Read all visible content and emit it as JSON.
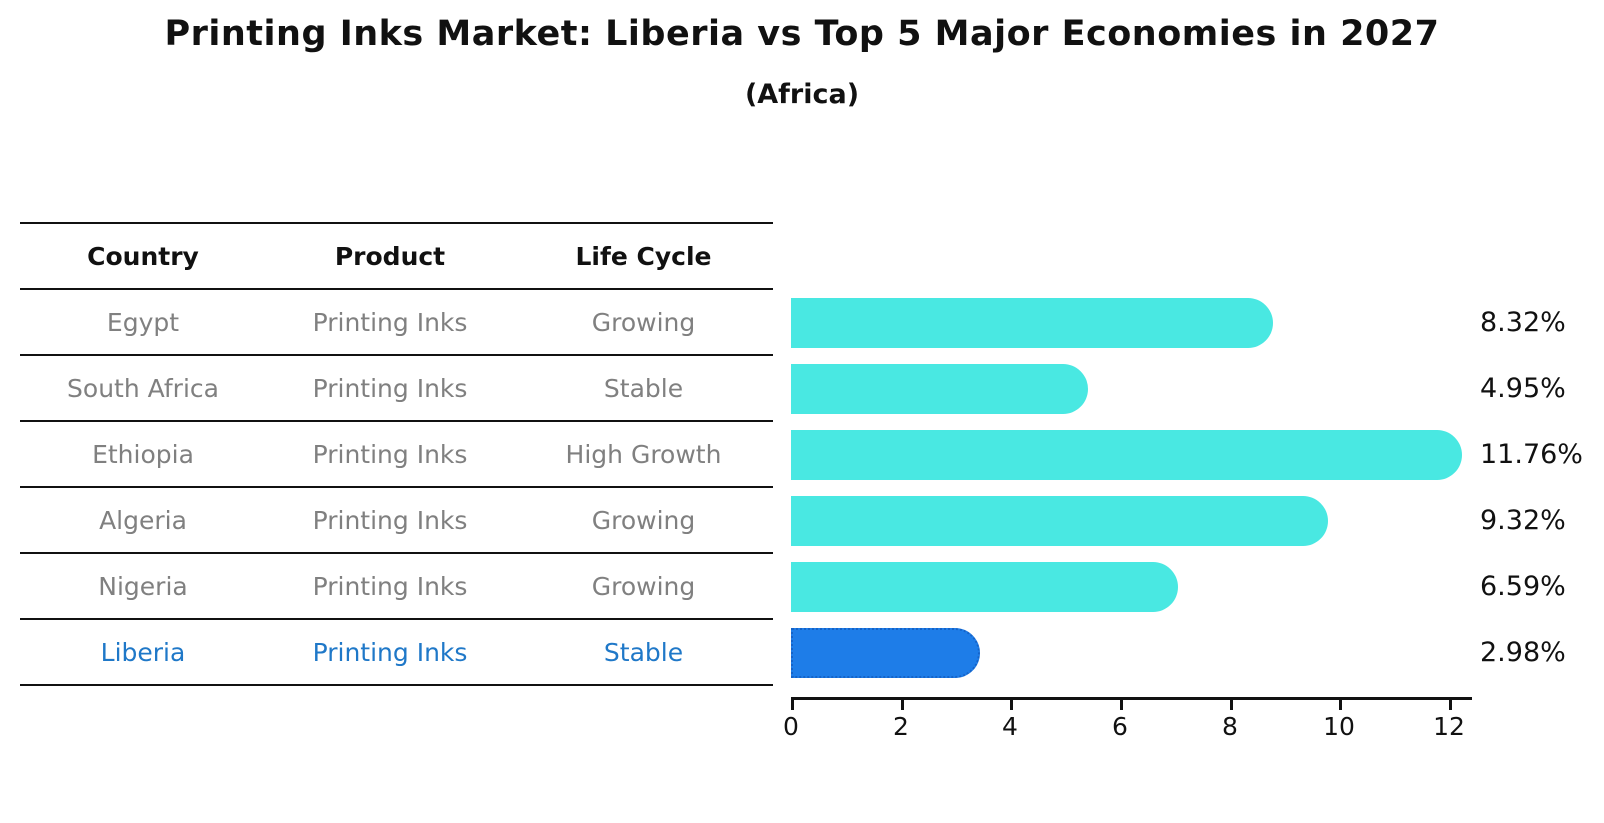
{
  "title": "Printing Inks Market: Liberia vs Top 5 Major Economies in 2027",
  "subtitle": "(Africa)",
  "table": {
    "headers": {
      "country": "Country",
      "product": "Product",
      "life_cycle": "Life Cycle"
    },
    "rows": [
      {
        "country": "Egypt",
        "product": "Printing Inks",
        "life_cycle": "Growing",
        "highlight": false
      },
      {
        "country": "South Africa",
        "product": "Printing Inks",
        "life_cycle": "Stable",
        "highlight": false
      },
      {
        "country": "Ethiopia",
        "product": "Printing Inks",
        "life_cycle": "High Growth",
        "highlight": false
      },
      {
        "country": "Algeria",
        "product": "Printing Inks",
        "life_cycle": "Growing",
        "highlight": false
      },
      {
        "country": "Nigeria",
        "product": "Printing Inks",
        "life_cycle": "Growing",
        "highlight": false
      },
      {
        "country": "Liberia",
        "product": "Printing Inks",
        "life_cycle": "Stable",
        "highlight": true
      }
    ]
  },
  "chart_data": {
    "type": "bar",
    "orientation": "horizontal",
    "title": "Printing Inks Market: Liberia vs Top 5 Major Economies in 2027 (Africa)",
    "categories": [
      "Egypt",
      "South Africa",
      "Ethiopia",
      "Algeria",
      "Nigeria",
      "Liberia"
    ],
    "values": [
      8.32,
      4.95,
      11.76,
      9.32,
      6.59,
      2.98
    ],
    "labels": [
      "8.32%",
      "4.95%",
      "11.76%",
      "9.32%",
      "6.59%",
      "2.98%"
    ],
    "xlim": [
      0,
      12
    ],
    "xticks": [
      "0",
      "2",
      "4",
      "6",
      "8",
      "10",
      "12"
    ],
    "grid": false,
    "legend": false,
    "bar_color": "#49e8e2",
    "highlight_color": "#1e7de8",
    "highlight_border_color": "#1563c8",
    "highlight_index": 5
  },
  "colors": {
    "text": "#111111",
    "muted_text": "#808080",
    "highlight_text": "#1f78c8",
    "background": "#ffffff"
  }
}
